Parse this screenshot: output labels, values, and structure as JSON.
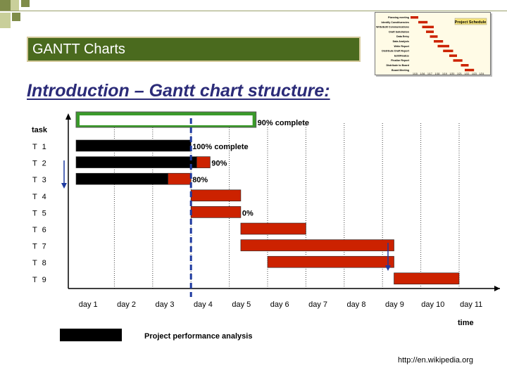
{
  "header": {
    "title": "GANTT Charts"
  },
  "slide": {
    "title": "Introduction – Gantt chart structure:"
  },
  "thumbnail": {
    "title": "Project Schedule",
    "tasks": [
      "Planning meeting",
      "Identify Constituencies",
      "Write/Edit Communications",
      "Draft Solicitation",
      "Data Entry",
      "Data Analysis",
      "Write Report",
      "Distribute Draft Report",
      "Edit/Finalize",
      "Finalize Report",
      "Distribute to Board",
      "Board Meeting"
    ],
    "days": [
      "1/15",
      "1/16",
      "1/17",
      "1/18",
      "1/19",
      "1/20",
      "1/21",
      "1/22",
      "1/23",
      "1/24"
    ]
  },
  "chart_data": {
    "type": "gantt",
    "y_label": "task",
    "x_label": "time",
    "tasks": [
      {
        "name": "T 1",
        "start": 1,
        "end": 4,
        "complete": 100,
        "label": "100% complete"
      },
      {
        "name": "T 2",
        "start": 1,
        "end": 4.5,
        "complete": 90,
        "label": "90%"
      },
      {
        "name": "T 3",
        "start": 1,
        "end": 4,
        "complete": 80,
        "label": "80%"
      },
      {
        "name": "T 4",
        "start": 4,
        "end": 5.3,
        "complete": 0,
        "label": ""
      },
      {
        "name": "T 5",
        "start": 4,
        "end": 5.3,
        "complete": 0,
        "label": "0%"
      },
      {
        "name": "T 6",
        "start": 5.3,
        "end": 7,
        "complete": 0,
        "label": ""
      },
      {
        "name": "T 7",
        "start": 5.3,
        "end": 9.3,
        "complete": 0,
        "label": ""
      },
      {
        "name": "T 8",
        "start": 6,
        "end": 9.3,
        "complete": 0,
        "label": ""
      },
      {
        "name": "T 9",
        "start": 9.3,
        "end": 11,
        "complete": 0,
        "label": ""
      }
    ],
    "days": [
      "day 1",
      "day 2",
      "day 3",
      "day 4",
      "day 5",
      "day 6",
      "day 7",
      "day 8",
      "day 9",
      "day 10",
      "day 11"
    ],
    "summary": {
      "start": 1,
      "end": 5.7,
      "label": "90% complete"
    },
    "status_day": 4,
    "colors": {
      "done": "#000000",
      "todo": "#cc2200",
      "summary": "#3a9a2a",
      "status_line": "#1e3aa0",
      "arrow": "#1e3aa0"
    }
  },
  "legend": {
    "text": "Project performance analysis"
  },
  "credit": {
    "text": "http://en.wikipedia.org"
  }
}
